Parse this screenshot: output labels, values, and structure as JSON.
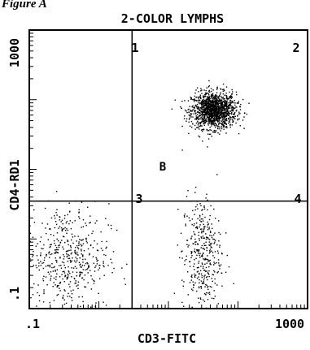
{
  "figure_label": "Figure A",
  "chart_data": {
    "type": "scatter",
    "title": "2-COLOR LYMPHS",
    "xlabel": "CD3-FITC",
    "ylabel": "CD4-RD1",
    "x_scale": "log",
    "y_scale": "log",
    "xlim": [
      0.1,
      1000
    ],
    "ylim": [
      0.1,
      1000
    ],
    "x_tick_labels": [
      ".1",
      "1000"
    ],
    "y_tick_labels": [
      ".1",
      "1000"
    ],
    "quadrant_gates": {
      "x": 3.0,
      "y": 3.5
    },
    "quadrant_labels": [
      "1",
      "2",
      "3",
      "4"
    ],
    "annotations": [
      "B"
    ],
    "grid": false,
    "legend": "none",
    "populations": [
      {
        "quadrant": 2,
        "center": [
          45,
          70
        ],
        "spread_log": [
          0.16,
          0.13
        ],
        "events": 1400
      },
      {
        "quadrant": 3,
        "center": [
          0.35,
          0.55
        ],
        "spread_log": [
          0.3,
          0.38
        ],
        "events": 500
      },
      {
        "quadrant": 4,
        "center": [
          30,
          0.6
        ],
        "spread_log": [
          0.14,
          0.42
        ],
        "events": 380
      }
    ],
    "colors": {
      "points": "#000000",
      "background": "#ffffff"
    }
  }
}
